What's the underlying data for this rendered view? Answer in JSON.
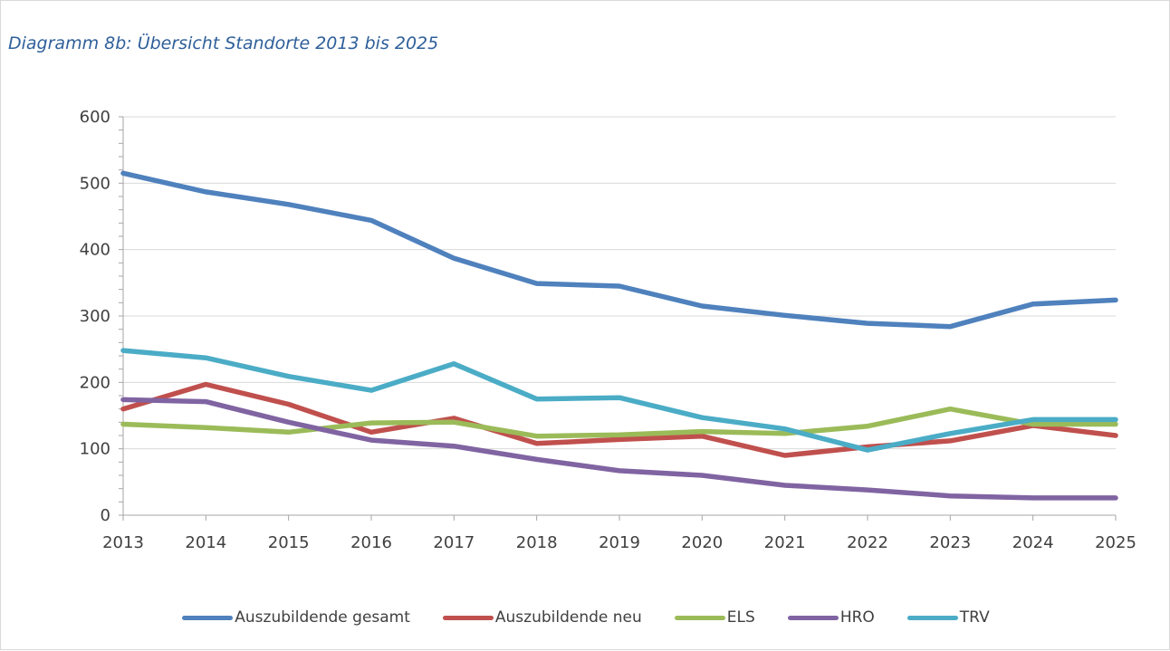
{
  "chart_data": {
    "type": "line",
    "title": "Diagramm 8b: Übersicht Standorte 2013 bis 2025",
    "xlabel": "",
    "ylabel": "",
    "x": [
      "2013",
      "2014",
      "2015",
      "2016",
      "2017",
      "2018",
      "2019",
      "2020",
      "2021",
      "2022",
      "2023",
      "2024",
      "2025"
    ],
    "ylim": [
      0,
      600
    ],
    "yticks": [
      0,
      100,
      200,
      300,
      400,
      500,
      600
    ],
    "grid": true,
    "legend": "bottom",
    "series": [
      {
        "name": "Auszubildende gesamt",
        "color": "#4f81bd",
        "values": [
          515,
          487,
          468,
          444,
          387,
          349,
          345,
          315,
          301,
          289,
          284,
          318,
          324
        ]
      },
      {
        "name": "Auszubildende neu",
        "color": "#c0504d",
        "values": [
          160,
          197,
          167,
          125,
          146,
          108,
          114,
          119,
          90,
          103,
          112,
          135,
          120
        ]
      },
      {
        "name": "ELS",
        "color": "#9bbb59",
        "values": [
          137,
          132,
          125,
          139,
          140,
          119,
          121,
          126,
          123,
          134,
          160,
          137,
          137
        ]
      },
      {
        "name": "HRO",
        "color": "#8064a2",
        "values": [
          174,
          171,
          140,
          113,
          104,
          84,
          67,
          60,
          45,
          38,
          29,
          26,
          26
        ]
      },
      {
        "name": "TRV",
        "color": "#4bacc6",
        "values": [
          248,
          237,
          209,
          188,
          228,
          175,
          177,
          147,
          130,
          98,
          123,
          144,
          144
        ]
      }
    ]
  }
}
